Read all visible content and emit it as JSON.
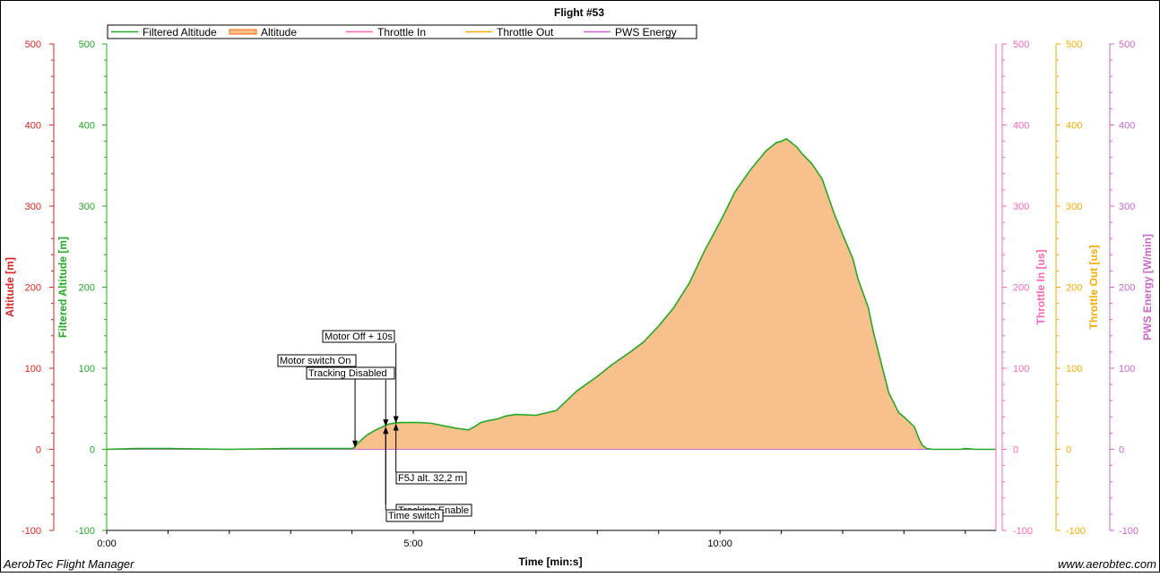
{
  "app": {
    "footer_left": "AerobTec Flight Manager",
    "footer_right": "www.aerobtec.com"
  },
  "chart_data": {
    "type": "area",
    "title": "Flight #53",
    "xlabel": "Time [min:s]",
    "x_ticks": [
      "0:00",
      "5:00",
      "10:00"
    ],
    "x_range_seconds": [
      0,
      870
    ],
    "grid": true,
    "legend_placement": "top-left",
    "legend": [
      {
        "name": "Filtered Altitude",
        "color": "#22aa22"
      },
      {
        "name": "Altitude",
        "color": "#ff6600"
      },
      {
        "name": "Throttle In",
        "color": "#ff66bb"
      },
      {
        "name": "Throttle Out",
        "color": "#ffaa00"
      },
      {
        "name": "PWS Energy",
        "color": "#cc66cc"
      }
    ],
    "axes": [
      {
        "label": "Altitude [m]",
        "color": "#dd2222",
        "range": [
          -100,
          500
        ],
        "ticks": [
          "500",
          "400",
          "300",
          "200",
          "100",
          "0",
          "-100"
        ]
      },
      {
        "label": "Filtered Altitude [m]",
        "color": "#22aa22",
        "range": [
          -100,
          500
        ],
        "ticks": [
          "500",
          "400",
          "300",
          "200",
          "100",
          "0",
          "-100"
        ]
      },
      {
        "label": "Throttle In [us]",
        "color": "#ff66bb",
        "range": [
          -100,
          500
        ],
        "ticks": [
          "500",
          "400",
          "300",
          "200",
          "100",
          "0",
          "-100"
        ]
      },
      {
        "label": "Throttle Out [us]",
        "color": "#ffaa00",
        "range": [
          -100,
          500
        ],
        "ticks": [
          "500",
          "400",
          "300",
          "200",
          "100",
          "0",
          "-100"
        ]
      },
      {
        "label": "PWS Energy [W/min]",
        "color": "#cc66cc",
        "range": [
          -100,
          500
        ],
        "ticks": [
          "500",
          "400",
          "300",
          "200",
          "100",
          "0",
          "-100"
        ]
      }
    ],
    "series": [
      {
        "name": "Filtered Altitude",
        "x": [
          0,
          30,
          60,
          120,
          180,
          240,
          242,
          246,
          255,
          262,
          270,
          276,
          282,
          288,
          300,
          306,
          318,
          330,
          342,
          354,
          360,
          366,
          372,
          384,
          390,
          400,
          420,
          440,
          450,
          460,
          480,
          495,
          510,
          525,
          540,
          555,
          570,
          585,
          600,
          615,
          630,
          645,
          655,
          660,
          665,
          670,
          675,
          680,
          690,
          700,
          705,
          712,
          720,
          730,
          735,
          745,
          750,
          757,
          765,
          775,
          780,
          790,
          795,
          798,
          802,
          808,
          820,
          835,
          840,
          850,
          860,
          870
        ],
        "y": [
          0,
          1,
          1,
          0,
          1,
          1,
          2,
          8,
          18,
          23,
          28,
          31,
          32.5,
          33,
          33,
          33,
          32,
          29,
          26,
          24,
          28,
          33,
          35,
          38,
          41,
          43,
          42,
          48,
          60,
          72,
          90,
          105,
          118,
          132,
          152,
          175,
          205,
          245,
          280,
          318,
          345,
          368,
          378,
          380,
          383,
          378,
          373,
          365,
          352,
          333,
          315,
          290,
          265,
          235,
          210,
          175,
          145,
          110,
          70,
          45,
          40,
          28,
          12,
          5,
          1,
          0,
          0,
          0,
          1,
          0,
          0,
          0
        ]
      },
      {
        "name": "Altitude",
        "note": "same profile as Filtered Altitude, rendered as filled area"
      },
      {
        "name": "Throttle In",
        "x": [
          0,
          870
        ],
        "y": [
          0,
          0
        ]
      },
      {
        "name": "Throttle Out",
        "x": [
          0,
          870
        ],
        "y": [
          0,
          0
        ]
      },
      {
        "name": "PWS Energy",
        "x": [
          0,
          870
        ],
        "y": [
          0,
          0
        ]
      }
    ],
    "events": [
      {
        "label": "Motor Off + 10s",
        "time": 283,
        "value": 32
      },
      {
        "label": "Motor switch On",
        "time": 243,
        "value": 2
      },
      {
        "label": "Tracking Disabled",
        "time": 273,
        "value": 28
      },
      {
        "label": "F5J alt. 32,2 m",
        "time": 283,
        "value": 32
      },
      {
        "label": "Tracking Enable",
        "time": 273,
        "value": 28
      },
      {
        "label": "Time switch",
        "time": 273,
        "value": 28
      }
    ]
  }
}
